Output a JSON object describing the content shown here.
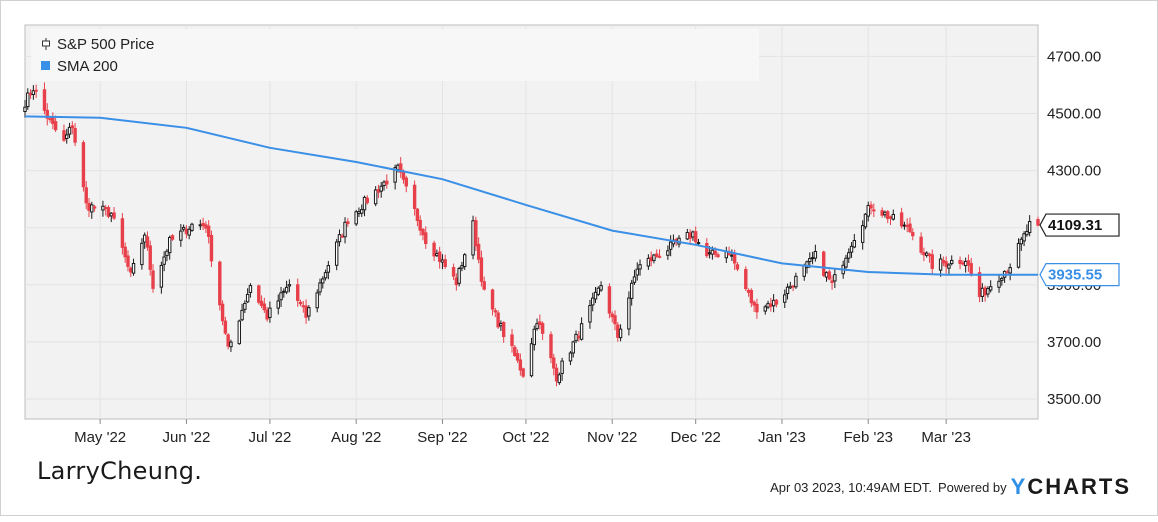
{
  "chart_data": {
    "type": "candlestick+line",
    "title": "",
    "y_ticks": [
      "4700.00",
      "4500.00",
      "4300.00",
      "4100.00",
      "3900.00",
      "3700.00",
      "3500.00"
    ],
    "y_tick_values": [
      4700,
      4500,
      4300,
      4100,
      3900,
      3700,
      3500
    ],
    "ylim": [
      3430,
      4810
    ],
    "x_ticks": [
      "May '22",
      "Jun '22",
      "Jul '22",
      "Aug '22",
      "Sep '22",
      "Oct '22",
      "Nov '22",
      "Dec '22",
      "Jan '23",
      "Feb '23",
      "Mar '23"
    ],
    "x_tick_dates": [
      "2022-05-01",
      "2022-06-01",
      "2022-07-01",
      "2022-08-01",
      "2022-09-01",
      "2022-10-01",
      "2022-11-01",
      "2022-12-01",
      "2023-01-01",
      "2023-02-01",
      "2023-03-01"
    ],
    "xlim": [
      "2022-04-04",
      "2023-04-03"
    ],
    "grid": true,
    "legend_position": "top-left",
    "series": [
      {
        "name": "S&P 500 Price",
        "style": "candlestick",
        "up_color": "#1a1a1a",
        "down_color": "#e8404a",
        "anchors": [
          [
            "2022-04-04",
            4540
          ],
          [
            "2022-04-07",
            4590
          ],
          [
            "2022-04-13",
            4470
          ],
          [
            "2022-04-18",
            4400
          ],
          [
            "2022-04-21",
            4460
          ],
          [
            "2022-04-26",
            4180
          ],
          [
            "2022-05-05",
            4150
          ],
          [
            "2022-05-12",
            3930
          ],
          [
            "2022-05-17",
            4080
          ],
          [
            "2022-05-20",
            3900
          ],
          [
            "2022-05-26",
            4050
          ],
          [
            "2022-06-03",
            4110
          ],
          [
            "2022-06-08",
            4110
          ],
          [
            "2022-06-16",
            3670
          ],
          [
            "2022-06-24",
            3900
          ],
          [
            "2022-06-30",
            3790
          ],
          [
            "2022-07-08",
            3900
          ],
          [
            "2022-07-14",
            3790
          ],
          [
            "2022-07-29",
            4130
          ],
          [
            "2022-08-16",
            4305
          ],
          [
            "2022-08-26",
            4060
          ],
          [
            "2022-09-06",
            3910
          ],
          [
            "2022-09-12",
            4110
          ],
          [
            "2022-09-16",
            3870
          ],
          [
            "2022-09-30",
            3590
          ],
          [
            "2022-10-05",
            3780
          ],
          [
            "2022-10-12",
            3580
          ],
          [
            "2022-10-21",
            3750
          ],
          [
            "2022-10-28",
            3900
          ],
          [
            "2022-11-03",
            3720
          ],
          [
            "2022-11-10",
            3960
          ],
          [
            "2022-11-30",
            4080
          ],
          [
            "2022-12-05",
            4000
          ],
          [
            "2022-12-13",
            4020
          ],
          [
            "2022-12-22",
            3820
          ],
          [
            "2022-12-30",
            3840
          ],
          [
            "2023-01-13",
            4000
          ],
          [
            "2023-01-19",
            3900
          ],
          [
            "2023-01-27",
            4070
          ],
          [
            "2023-02-02",
            4180
          ],
          [
            "2023-02-16",
            4090
          ],
          [
            "2023-02-24",
            3970
          ],
          [
            "2023-03-08",
            3990
          ],
          [
            "2023-03-13",
            3860
          ],
          [
            "2023-03-24",
            3970
          ],
          [
            "2023-03-31",
            4109
          ]
        ]
      },
      {
        "name": "SMA 200",
        "style": "line",
        "color": "#3a8fe6",
        "points": [
          [
            "2022-04-04",
            4490
          ],
          [
            "2022-05-01",
            4485
          ],
          [
            "2022-06-01",
            4450
          ],
          [
            "2022-07-01",
            4380
          ],
          [
            "2022-08-01",
            4330
          ],
          [
            "2022-09-01",
            4270
          ],
          [
            "2022-10-01",
            4180
          ],
          [
            "2022-11-01",
            4090
          ],
          [
            "2022-12-01",
            4040
          ],
          [
            "2023-01-01",
            3975
          ],
          [
            "2023-02-01",
            3945
          ],
          [
            "2023-03-01",
            3935
          ],
          [
            "2023-04-03",
            3935.55
          ]
        ]
      }
    ],
    "last_price_label": "4109.31",
    "last_sma_label": "3935.55",
    "last_price_value": 4109.31,
    "last_sma_value": 3935.55
  },
  "legend": {
    "price_label": "S&P 500 Price",
    "sma_label": "SMA 200"
  },
  "footer": {
    "brand": "LarryCheung.",
    "timestamp": "Apr 03 2023, 10:49AM EDT.",
    "powered_by": "Powered by",
    "ycharts_y": "Y",
    "ycharts_rest": "CHARTS"
  },
  "colors": {
    "sma": "#3a8fe6",
    "up": "#1a1a1a",
    "down": "#e8404a",
    "plot_bg": "#f2f2f2"
  }
}
